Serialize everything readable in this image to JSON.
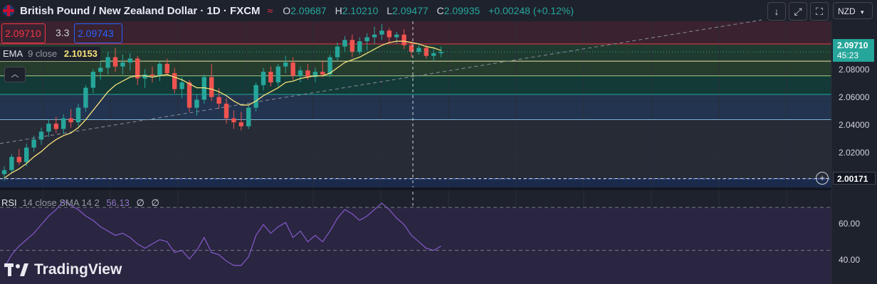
{
  "header": {
    "title": "British Pound / New Zealand Dollar · 1D · FXCM",
    "ohlc": {
      "o_label": "O",
      "o": "2.09687",
      "h_label": "H",
      "h": "2.10210",
      "l_label": "L",
      "l": "2.09477",
      "c_label": "C",
      "c": "2.09935",
      "change": "+0.00248 (+0.12%)"
    },
    "bid": "2.09710",
    "spread": "3.3",
    "ask": "2.09743",
    "currency": "NZD"
  },
  "indicators": {
    "ema": {
      "name": "EMA",
      "params": "9 close",
      "value": "2.10153"
    },
    "rsi": {
      "name": "RSI",
      "params": "14 close SMA 14 2",
      "value": "56.13",
      "extra1": "∅",
      "extra2": "∅"
    }
  },
  "price_axis": {
    "labels": [
      "2.08000",
      "2.06000",
      "2.04000",
      "2.02000"
    ],
    "last_price": "2.09710",
    "countdown": "45:23",
    "crosshair_price": "2.00171"
  },
  "rsi_axis": {
    "labels": [
      "60.00",
      "40.00"
    ]
  },
  "branding": "TradingView",
  "colors": {
    "up": "#26a69a",
    "down": "#ef5350",
    "ema": "#f7e27a",
    "rsi": "#7e57c2",
    "bid": "#f23645",
    "ask": "#2962ff"
  },
  "icons": {
    "scroll": "arrow-down-icon",
    "fullscreen": "expand-icon",
    "screenshot": "camera-frame-icon"
  },
  "chart_data": {
    "type": "candlestick",
    "ylim": [
      1.995,
      2.12
    ],
    "candles": [
      [
        2.005,
        2.011,
        2.0,
        2.008
      ],
      [
        2.008,
        2.02,
        2.006,
        2.018
      ],
      [
        2.018,
        2.024,
        2.012,
        2.014
      ],
      [
        2.014,
        2.028,
        2.011,
        2.025
      ],
      [
        2.025,
        2.034,
        2.022,
        2.031
      ],
      [
        2.031,
        2.04,
        2.027,
        2.037
      ],
      [
        2.037,
        2.046,
        2.033,
        2.043
      ],
      [
        2.043,
        2.048,
        2.036,
        2.039
      ],
      [
        2.039,
        2.05,
        2.035,
        2.047
      ],
      [
        2.047,
        2.054,
        2.04,
        2.044
      ],
      [
        2.044,
        2.058,
        2.041,
        2.055
      ],
      [
        2.055,
        2.072,
        2.052,
        2.07
      ],
      [
        2.07,
        2.084,
        2.066,
        2.082
      ],
      [
        2.082,
        2.09,
        2.076,
        2.085
      ],
      [
        2.085,
        2.097,
        2.08,
        2.093
      ],
      [
        2.093,
        2.1,
        2.082,
        2.086
      ],
      [
        2.086,
        2.095,
        2.08,
        2.089
      ],
      [
        2.089,
        2.096,
        2.083,
        2.092
      ],
      [
        2.092,
        2.094,
        2.072,
        2.077
      ],
      [
        2.077,
        2.084,
        2.07,
        2.08
      ],
      [
        2.08,
        2.086,
        2.074,
        2.079
      ],
      [
        2.079,
        2.09,
        2.075,
        2.088
      ],
      [
        2.088,
        2.092,
        2.079,
        2.081
      ],
      [
        2.081,
        2.085,
        2.066,
        2.069
      ],
      [
        2.069,
        2.078,
        2.062,
        2.074
      ],
      [
        2.074,
        2.076,
        2.052,
        2.055
      ],
      [
        2.055,
        2.065,
        2.049,
        2.061
      ],
      [
        2.061,
        2.08,
        2.058,
        2.078
      ],
      [
        2.078,
        2.088,
        2.06,
        2.063
      ],
      [
        2.063,
        2.07,
        2.054,
        2.058
      ],
      [
        2.058,
        2.062,
        2.043,
        2.047
      ],
      [
        2.047,
        2.053,
        2.039,
        2.044
      ],
      [
        2.044,
        2.052,
        2.038,
        2.041
      ],
      [
        2.041,
        2.057,
        2.039,
        2.055
      ],
      [
        2.055,
        2.074,
        2.052,
        2.072
      ],
      [
        2.072,
        2.085,
        2.068,
        2.082
      ],
      [
        2.082,
        2.086,
        2.071,
        2.074
      ],
      [
        2.074,
        2.088,
        2.071,
        2.086
      ],
      [
        2.086,
        2.094,
        2.081,
        2.089
      ],
      [
        2.089,
        2.093,
        2.076,
        2.079
      ],
      [
        2.079,
        2.086,
        2.074,
        2.083
      ],
      [
        2.083,
        2.088,
        2.076,
        2.078
      ],
      [
        2.078,
        2.085,
        2.074,
        2.082
      ],
      [
        2.082,
        2.09,
        2.078,
        2.08
      ],
      [
        2.08,
        2.095,
        2.078,
        2.093
      ],
      [
        2.093,
        2.104,
        2.09,
        2.101
      ],
      [
        2.101,
        2.109,
        2.097,
        2.106
      ],
      [
        2.106,
        2.11,
        2.093,
        2.097
      ],
      [
        2.097,
        2.108,
        2.095,
        2.105
      ],
      [
        2.105,
        2.111,
        2.098,
        2.108
      ],
      [
        2.108,
        2.116,
        2.103,
        2.11
      ],
      [
        2.11,
        2.118,
        2.106,
        2.113
      ],
      [
        2.113,
        2.115,
        2.104,
        2.108
      ],
      [
        2.108,
        2.112,
        2.103,
        2.11
      ],
      [
        2.11,
        2.114,
        2.099,
        2.102
      ],
      [
        2.102,
        2.105,
        2.093,
        2.097
      ],
      [
        2.097,
        2.103,
        2.095,
        2.1
      ],
      [
        2.1,
        2.102,
        2.092,
        2.094
      ],
      [
        2.094,
        2.1,
        2.09,
        2.096
      ],
      [
        2.096,
        2.101,
        2.093,
        2.097
      ]
    ],
    "ema": [
      2.002,
      2.006,
      2.009,
      2.013,
      2.018,
      2.022,
      2.027,
      2.031,
      2.034,
      2.036,
      2.04,
      2.046,
      2.053,
      2.06,
      2.067,
      2.072,
      2.075,
      2.078,
      2.079,
      2.079,
      2.078,
      2.079,
      2.08,
      2.078,
      2.076,
      2.073,
      2.07,
      2.07,
      2.069,
      2.067,
      2.064,
      2.06,
      2.057,
      2.057,
      2.06,
      2.064,
      2.067,
      2.07,
      2.074,
      2.075,
      2.077,
      2.078,
      2.079,
      2.079,
      2.081,
      2.085,
      2.089,
      2.091,
      2.093,
      2.096,
      2.099,
      2.102,
      2.104,
      2.105,
      2.105,
      2.104,
      2.103,
      2.101,
      2.1,
      2.098
    ],
    "rsi": [
      42,
      48,
      52,
      55,
      58,
      62,
      66,
      69,
      73,
      71,
      69,
      66,
      64,
      61,
      59,
      57,
      58,
      56,
      53,
      51,
      53,
      55,
      54,
      49,
      50,
      46,
      50,
      56,
      49,
      48,
      45,
      43,
      43,
      47,
      57,
      62,
      58,
      61,
      63,
      56,
      59,
      54,
      57,
      54,
      59,
      65,
      69,
      67,
      64,
      66,
      69,
      72,
      69,
      65,
      62,
      57,
      54,
      51,
      50,
      52
    ],
    "rsi_ylim": [
      35,
      78
    ],
    "price_levels": [
      2.103,
      2.09,
      2.079,
      2.065,
      2.046,
      2.0015
    ],
    "crosshair_price": 2.00171,
    "ticks": [
      2.08,
      2.06,
      2.04,
      2.02
    ]
  }
}
